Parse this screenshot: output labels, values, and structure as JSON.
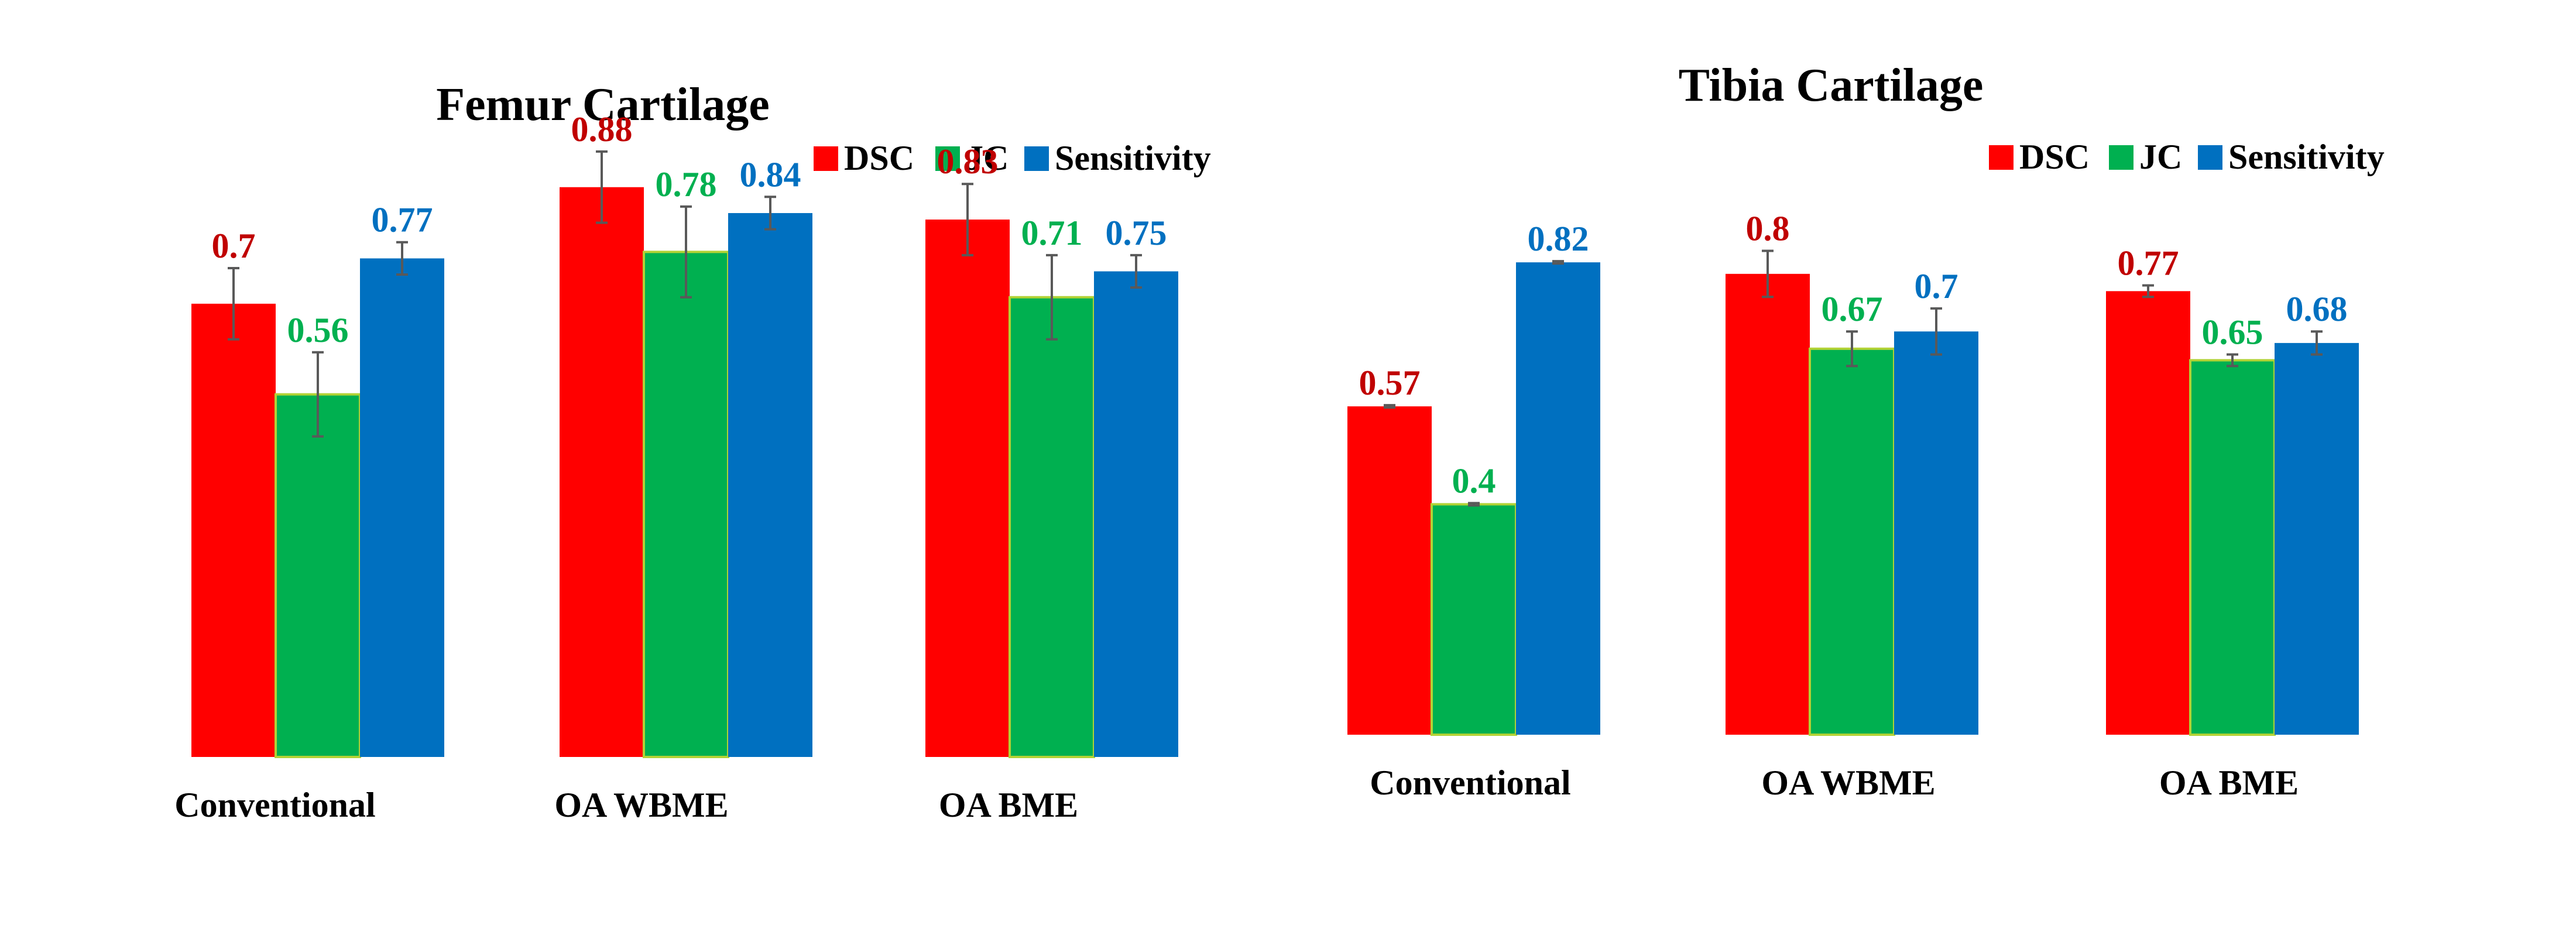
{
  "chart_data": [
    {
      "type": "bar",
      "title": "Femur Cartilage",
      "categories": [
        "Conventional",
        "OA WBME",
        "OA BME"
      ],
      "series": [
        {
          "name": "DSC",
          "values": [
            0.7,
            0.88,
            0.83
          ],
          "errors": [
            0.055,
            0.055,
            0.055
          ],
          "value_labels": [
            "0.7",
            "0.88",
            "0.83"
          ]
        },
        {
          "name": "JC",
          "values": [
            0.56,
            0.78,
            0.71
          ],
          "errors": [
            0.065,
            0.07,
            0.065
          ],
          "value_labels": [
            "0.56",
            "0.78",
            "0.71"
          ]
        },
        {
          "name": "Sensitivity",
          "values": [
            0.77,
            0.84,
            0.75
          ],
          "errors": [
            0.025,
            0.025,
            0.025
          ],
          "value_labels": [
            "0.77",
            "0.84",
            "0.75"
          ]
        }
      ],
      "ylim": [
        0,
        1
      ],
      "xlabel": "",
      "ylabel": "",
      "legend_position": "top-right"
    },
    {
      "type": "bar",
      "title": "Tibia Cartilage",
      "categories": [
        "Conventional",
        "OA WBME",
        "OA BME"
      ],
      "series": [
        {
          "name": "DSC",
          "values": [
            0.57,
            0.8,
            0.77
          ],
          "errors": [
            0.002,
            0.04,
            0.01
          ],
          "value_labels": [
            "0.57",
            "0.8",
            "0.77"
          ]
        },
        {
          "name": "JC",
          "values": [
            0.4,
            0.67,
            0.65
          ],
          "errors": [
            0.002,
            0.03,
            0.01
          ],
          "value_labels": [
            "0.4",
            "0.67",
            "0.65"
          ]
        },
        {
          "name": "Sensitivity",
          "values": [
            0.82,
            0.7,
            0.68
          ],
          "errors": [
            0.002,
            0.04,
            0.02
          ],
          "value_labels": [
            "0.82",
            "0.7",
            "0.68"
          ]
        }
      ],
      "ylim": [
        0,
        1
      ],
      "xlabel": "",
      "ylabel": "",
      "legend_position": "top-right"
    }
  ],
  "colors": {
    "DSC": "#FF0000",
    "JC": "#00B050",
    "Sensitivity": "#0070C0",
    "DSC_label": "#C00000",
    "JC_label": "#00B050",
    "Sensitivity_label": "#0070C0",
    "JC_edge": "#B2D235",
    "error_bar": "#595959"
  }
}
